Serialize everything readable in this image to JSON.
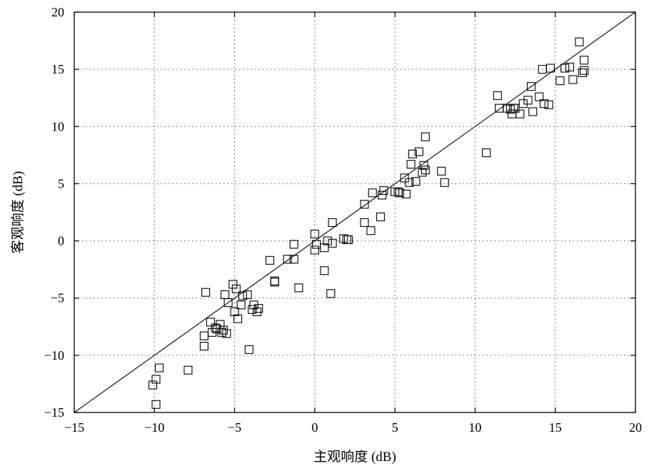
{
  "chart_data": {
    "type": "scatter",
    "title": "",
    "xlabel": "主观响度 (dB)",
    "ylabel": "客观响度 (dB)",
    "xlim": [
      -15,
      20
    ],
    "ylim": [
      -15,
      20
    ],
    "xticks": [
      -15,
      -10,
      -5,
      0,
      5,
      10,
      15,
      20
    ],
    "yticks": [
      -15,
      -10,
      -5,
      0,
      5,
      10,
      15,
      20
    ],
    "xtick_labels": [
      "−15",
      "−10",
      "−5",
      "0",
      "5",
      "10",
      "15",
      "20"
    ],
    "ytick_labels": [
      "−15",
      "−10",
      "−5",
      "0",
      "5",
      "10",
      "15",
      "20"
    ],
    "grid": true,
    "grid_style": "dotted",
    "marker": "open-square",
    "reference_line": {
      "x": [
        -15,
        20
      ],
      "y": [
        -15,
        20
      ]
    },
    "points": [
      [
        -10.1,
        -12.6
      ],
      [
        -9.9,
        -12.1
      ],
      [
        -9.7,
        -11.1
      ],
      [
        -9.9,
        -14.3
      ],
      [
        -7.9,
        -11.3
      ],
      [
        -6.9,
        -8.3
      ],
      [
        -6.9,
        -9.2
      ],
      [
        -6.8,
        -4.5
      ],
      [
        -6.5,
        -7.1
      ],
      [
        -6.4,
        -8.0
      ],
      [
        -6.2,
        -7.6
      ],
      [
        -6.1,
        -7.7
      ],
      [
        -5.9,
        -7.3
      ],
      [
        -5.8,
        -8.0
      ],
      [
        -5.7,
        -7.8
      ],
      [
        -5.5,
        -8.1
      ],
      [
        -5.6,
        -4.7
      ],
      [
        -5.4,
        -5.4
      ],
      [
        -5.1,
        -3.8
      ],
      [
        -4.9,
        -4.2
      ],
      [
        -5.0,
        -6.2
      ],
      [
        -4.8,
        -6.8
      ],
      [
        -4.6,
        -5.6
      ],
      [
        -4.5,
        -4.8
      ],
      [
        -4.2,
        -4.7
      ],
      [
        -4.1,
        -9.5
      ],
      [
        -3.9,
        -6.0
      ],
      [
        -3.8,
        -5.6
      ],
      [
        -3.6,
        -6.2
      ],
      [
        -3.5,
        -5.9
      ],
      [
        -2.8,
        -1.7
      ],
      [
        -2.5,
        -3.5
      ],
      [
        -2.5,
        -3.6
      ],
      [
        -1.7,
        -1.6
      ],
      [
        -1.3,
        -1.6
      ],
      [
        -1.3,
        -0.3
      ],
      [
        -1.0,
        -4.1
      ],
      [
        0.0,
        0.6
      ],
      [
        0.0,
        -0.8
      ],
      [
        0.1,
        -0.3
      ],
      [
        0.6,
        -0.6
      ],
      [
        0.6,
        -2.6
      ],
      [
        0.8,
        0.0
      ],
      [
        1.0,
        -4.6
      ],
      [
        1.1,
        -0.2
      ],
      [
        1.1,
        1.6
      ],
      [
        1.8,
        0.2
      ],
      [
        2.0,
        0.1
      ],
      [
        2.1,
        0.1
      ],
      [
        3.1,
        1.6
      ],
      [
        3.1,
        3.2
      ],
      [
        3.5,
        0.9
      ],
      [
        3.6,
        4.2
      ],
      [
        4.1,
        2.1
      ],
      [
        4.2,
        4.0
      ],
      [
        4.3,
        4.4
      ],
      [
        5.0,
        4.3
      ],
      [
        5.2,
        4.3
      ],
      [
        5.3,
        4.2
      ],
      [
        5.6,
        5.5
      ],
      [
        5.7,
        4.1
      ],
      [
        5.9,
        5.1
      ],
      [
        6.0,
        6.7
      ],
      [
        6.1,
        7.6
      ],
      [
        6.3,
        5.2
      ],
      [
        6.5,
        7.8
      ],
      [
        6.7,
        6.0
      ],
      [
        6.8,
        6.6
      ],
      [
        6.9,
        6.2
      ],
      [
        6.9,
        9.1
      ],
      [
        7.9,
        6.1
      ],
      [
        8.1,
        5.1
      ],
      [
        10.7,
        7.7
      ],
      [
        11.4,
        12.7
      ],
      [
        11.5,
        11.6
      ],
      [
        12.0,
        11.6
      ],
      [
        12.2,
        11.5
      ],
      [
        12.3,
        11.1
      ],
      [
        12.4,
        11.6
      ],
      [
        12.5,
        11.6
      ],
      [
        12.8,
        11.1
      ],
      [
        13.0,
        12.0
      ],
      [
        13.3,
        12.3
      ],
      [
        13.5,
        13.5
      ],
      [
        13.6,
        11.3
      ],
      [
        14.0,
        12.6
      ],
      [
        14.2,
        15.0
      ],
      [
        14.3,
        12.0
      ],
      [
        14.6,
        11.9
      ],
      [
        14.7,
        15.1
      ],
      [
        15.3,
        14.0
      ],
      [
        15.6,
        15.1
      ],
      [
        15.9,
        15.2
      ],
      [
        16.1,
        14.1
      ],
      [
        16.5,
        17.4
      ],
      [
        16.7,
        14.7
      ],
      [
        16.8,
        15.8
      ],
      [
        16.8,
        14.9
      ]
    ]
  }
}
